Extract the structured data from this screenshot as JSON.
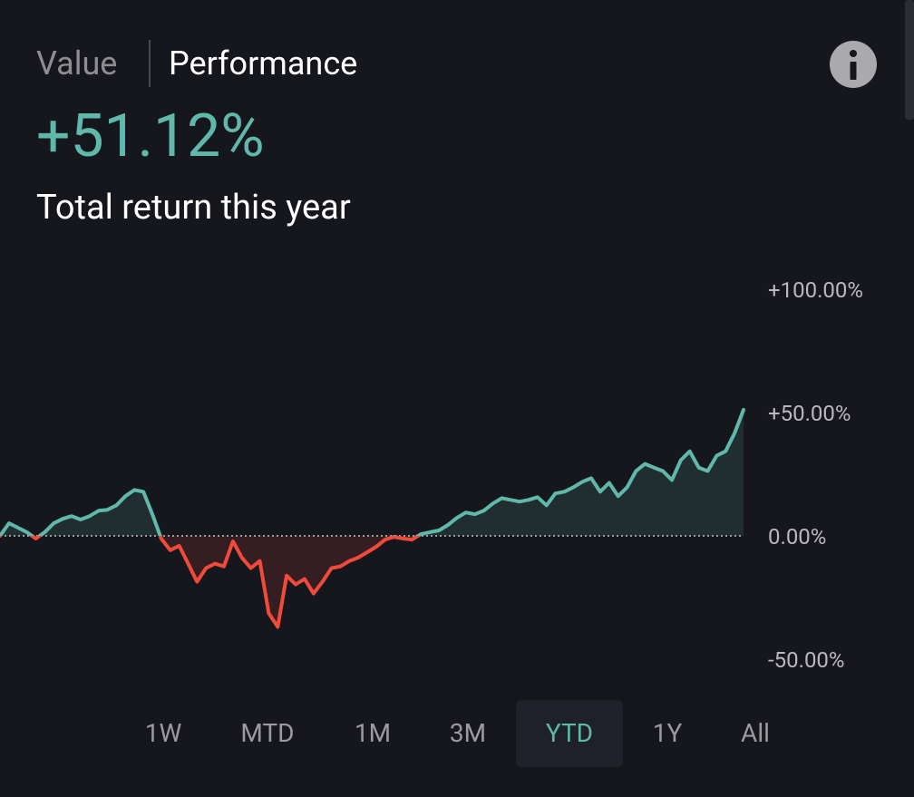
{
  "header": {
    "tabs": [
      "Value",
      "Performance"
    ],
    "active_tab": 1,
    "return_value": "+51.12%",
    "return_label": "Total return this year"
  },
  "chart_data": {
    "type": "line",
    "values": [
      0,
      5.1,
      3.3,
      1.5,
      -1.1,
      1.5,
      5.1,
      6.9,
      8.0,
      6.6,
      8.0,
      10.2,
      10.6,
      12.4,
      16.1,
      18.6,
      17.9,
      8.8,
      -1.1,
      -5.8,
      -4.0,
      -11.3,
      -18.6,
      -13.1,
      -11.3,
      -12.4,
      -2.2,
      -8.8,
      -13.1,
      -10.2,
      -31.4,
      -36.9,
      -16.1,
      -19.7,
      -17.5,
      -23.4,
      -18.6,
      -13.1,
      -12.4,
      -10.2,
      -8.8,
      -6.6,
      -4.4,
      -1.5,
      -0.4,
      -1.1,
      -1.5,
      0.7,
      1.5,
      2.2,
      4.4,
      7.3,
      9.5,
      8.8,
      10.2,
      13.1,
      15.3,
      14.6,
      13.9,
      14.6,
      15.7,
      12.4,
      17.2,
      17.9,
      19.7,
      21.9,
      23.4,
      17.9,
      21.5,
      16.1,
      19.7,
      26.3,
      29.2,
      27.7,
      26.3,
      22.6,
      30.7,
      34.3,
      27.7,
      26.3,
      32.5,
      34.3,
      41.6,
      51.1
    ],
    "color": "#5fb8a9",
    "negative_color": "#f04a3a",
    "ylim": [
      -50,
      100
    ],
    "yticks": [
      {
        "value": 100,
        "label": "+100.00%"
      },
      {
        "value": 50,
        "label": "+50.00%"
      },
      {
        "value": 0,
        "label": "0.00%"
      },
      {
        "value": -50,
        "label": "-50.00%"
      }
    ],
    "zero_line": true
  },
  "ranges": {
    "items": [
      "1W",
      "MTD",
      "1M",
      "3M",
      "YTD",
      "1Y",
      "All"
    ],
    "selected": 4
  }
}
